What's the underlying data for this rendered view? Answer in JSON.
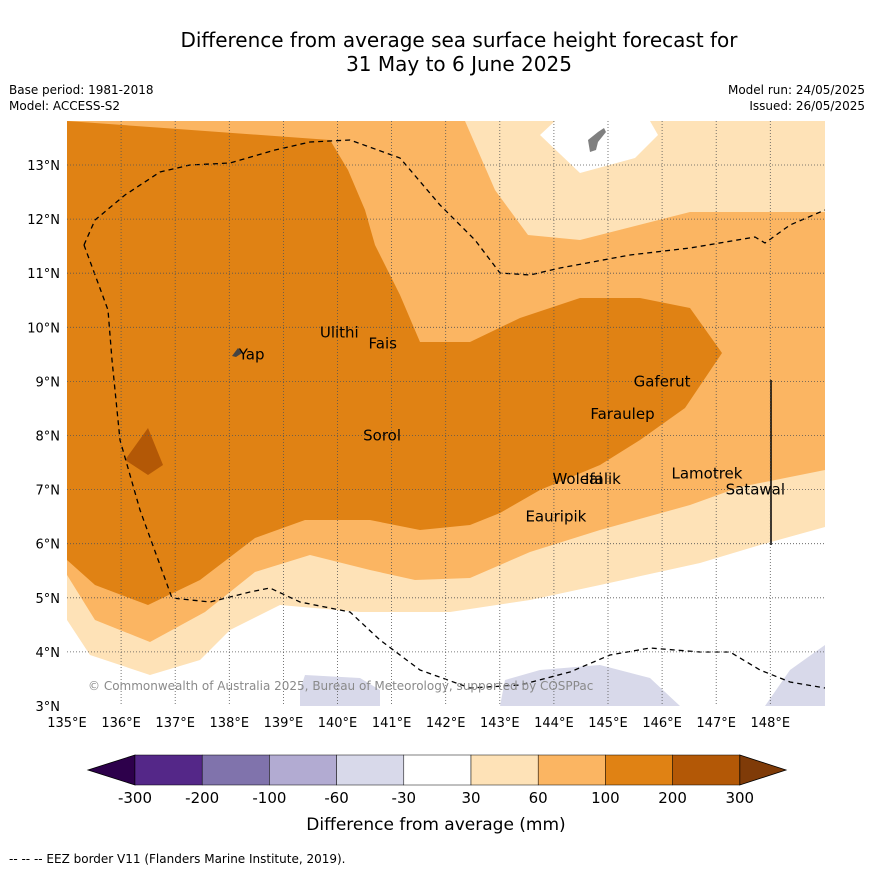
{
  "header": {
    "title_line1": "Difference from average sea surface height forecast for",
    "title_line2": "31 May to 6 June 2025",
    "base_period": "Base period: 1981-2018",
    "model": "Model: ACCESS-S2",
    "model_run": "Model run: 24/05/2025",
    "issued": "Issued: 26/05/2025"
  },
  "map": {
    "lon_range": [
      135,
      149
    ],
    "lat_range": [
      3,
      13.8
    ],
    "lon_ticks": [
      "135°E",
      "136°E",
      "137°E",
      "138°E",
      "139°E",
      "140°E",
      "141°E",
      "142°E",
      "143°E",
      "144°E",
      "145°E",
      "146°E",
      "147°E",
      "148°E"
    ],
    "lat_ticks": [
      "3°N",
      "4°N",
      "5°N",
      "6°N",
      "7°N",
      "8°N",
      "9°N",
      "10°N",
      "11°N",
      "12°N",
      "13°N"
    ],
    "places": [
      {
        "name": "Yap",
        "lon": 138.1,
        "lat": 9.5
      },
      {
        "name": "Ulithi",
        "lon": 139.6,
        "lat": 9.9
      },
      {
        "name": "Fais",
        "lon": 140.5,
        "lat": 9.7
      },
      {
        "name": "Gaferut",
        "lon": 145.4,
        "lat": 9.0
      },
      {
        "name": "Faraulep",
        "lon": 144.6,
        "lat": 8.4
      },
      {
        "name": "Sorol",
        "lon": 140.4,
        "lat": 8.0
      },
      {
        "name": "Woleai",
        "lon": 143.9,
        "lat": 7.2
      },
      {
        "name": "Ifalik",
        "lon": 144.5,
        "lat": 7.2
      },
      {
        "name": "Lamotrek",
        "lon": 146.1,
        "lat": 7.3
      },
      {
        "name": "Satawal",
        "lon": 147.1,
        "lat": 7.0
      },
      {
        "name": "Eauripik",
        "lon": 143.4,
        "lat": 6.5
      }
    ],
    "copyright": "© Commonwealth of Australia 2025, Bureau of Meteorology, supported by COSPPac",
    "colors": {
      "c30_60": "#fee2b7",
      "c60_100": "#fbb562",
      "c100_200": "#e08214",
      "c200_300": "#b35806",
      "cneg60_30": "#d8d9ea",
      "land": "#808080"
    }
  },
  "colorbar": {
    "label": "Difference from average (mm)",
    "ticks": [
      "-300",
      "-200",
      "-100",
      "-60",
      "-30",
      "30",
      "60",
      "100",
      "200",
      "300"
    ],
    "colors": [
      "#2d004b",
      "#542788",
      "#8073ac",
      "#b2abd2",
      "#d8d9ea",
      "#ffffff",
      "#fee2b7",
      "#fbb562",
      "#e08214",
      "#b35806",
      "#7f3b08"
    ]
  },
  "footer": {
    "legend_text": "--  --  -- EEZ border V11 (Flanders Marine Institute, 2019)."
  }
}
